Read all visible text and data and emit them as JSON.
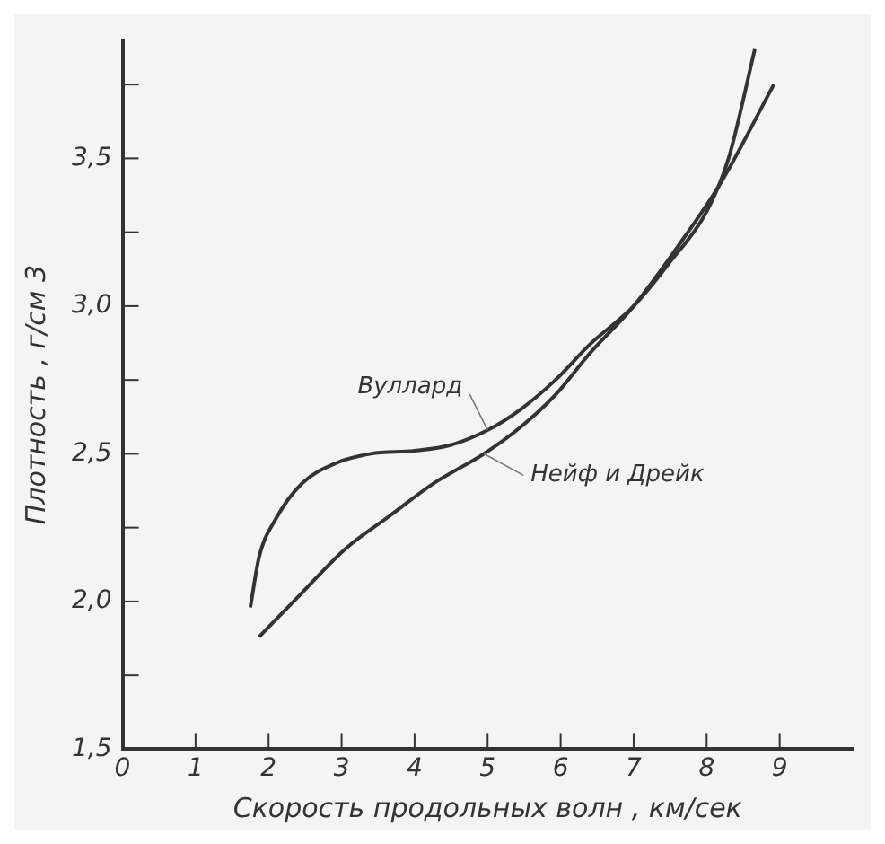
{
  "chart_data": {
    "type": "line",
    "xlabel": "Скорость продольных волн , км/сек",
    "ylabel": "Плотность , г/см 3",
    "xlim": [
      0,
      10
    ],
    "xticks": [
      0,
      1,
      2,
      3,
      4,
      5,
      6,
      7,
      8,
      9
    ],
    "ylim": [
      1.5,
      3.9
    ],
    "yticks": [
      {
        "value": 1.5,
        "label": "1,5"
      },
      {
        "value": 1.75,
        "label": null
      },
      {
        "value": 2,
        "label": "2,0"
      },
      {
        "value": 2.25,
        "label": null
      },
      {
        "value": 2.5,
        "label": "2,5"
      },
      {
        "value": 2.75,
        "label": null
      },
      {
        "value": 3,
        "label": "3,0"
      },
      {
        "value": 3.25,
        "label": null
      },
      {
        "value": 3.5,
        "label": "3,5"
      },
      {
        "value": 3.75,
        "label": null
      }
    ],
    "grid": false,
    "legend": false,
    "marker": "none",
    "line_style": "solid",
    "series": [
      {
        "name": "Вуллард",
        "color": "#333333",
        "x": [
          1.75,
          1.87,
          2.1,
          2.46,
          2.94,
          3.4,
          4.0,
          4.5,
          5.0,
          5.45,
          5.93,
          6.4,
          7.0,
          7.5,
          8.0,
          8.3,
          8.66
        ],
        "values": [
          1.98,
          2.15,
          2.28,
          2.4,
          2.47,
          2.5,
          2.51,
          2.53,
          2.58,
          2.65,
          2.75,
          2.87,
          3.0,
          3.15,
          3.32,
          3.5,
          3.87
        ]
      },
      {
        "name": "Нейф и Дрейк",
        "color": "#333333",
        "x": [
          1.87,
          2.46,
          3.06,
          3.66,
          4.26,
          4.95,
          5.45,
          5.93,
          6.4,
          7.0,
          7.6,
          8.2,
          8.92
        ],
        "values": [
          1.88,
          2.03,
          2.18,
          2.29,
          2.4,
          2.5,
          2.59,
          2.7,
          2.84,
          3.0,
          3.2,
          3.42,
          3.75
        ]
      }
    ]
  }
}
